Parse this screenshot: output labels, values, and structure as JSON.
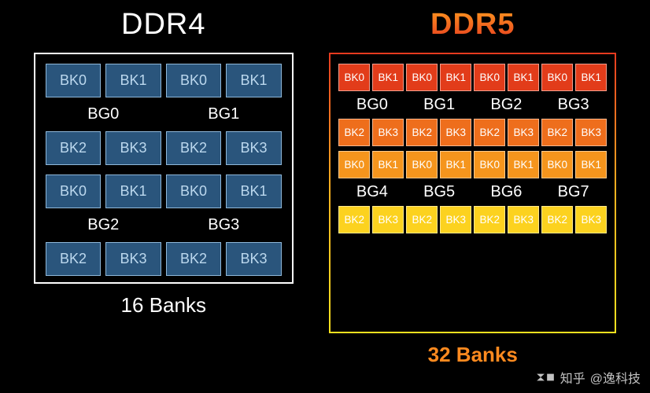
{
  "background_color": "#000000",
  "ddr4": {
    "title": "DDR4",
    "title_color": "#ffffff",
    "panel_border": "#ffffff",
    "bank_fill": "#2a557c",
    "bank_border": "#8fb8da",
    "bank_text_color": "#bcd8ee",
    "bg_label_color": "#ffffff",
    "footer": "16 Banks",
    "footer_color": "#ffffff",
    "bank_groups": [
      {
        "label": "BG0",
        "banks_top": [
          "BK0",
          "BK1"
        ],
        "banks_bottom": [
          "BK2",
          "BK3"
        ]
      },
      {
        "label": "BG1",
        "banks_top": [
          "BK0",
          "BK1"
        ],
        "banks_bottom": [
          "BK2",
          "BK3"
        ]
      },
      {
        "label": "BG2",
        "banks_top": [
          "BK0",
          "BK1"
        ],
        "banks_bottom": [
          "BK2",
          "BK3"
        ]
      },
      {
        "label": "BG3",
        "banks_top": [
          "BK0",
          "BK1"
        ],
        "banks_bottom": [
          "BK2",
          "BK3"
        ]
      }
    ]
  },
  "ddr5": {
    "title": "DDR5",
    "title_gradient": [
      "#ff9a1f",
      "#e63a1f"
    ],
    "panel_border_gradient": [
      "#e63a1f",
      "#ffb41f",
      "#ffe21f"
    ],
    "footer": "32 Banks",
    "footer_color": "#ff8a1f",
    "bg_label_color": "#ffffff",
    "bank_text_color": "#ffffff",
    "row_colors": [
      "#e23c1a",
      "#ee6e1c",
      "#f5951d",
      "#f9b81e",
      "#fcd21f",
      "#ffe21f"
    ],
    "bank_groups_top": [
      {
        "label": "BG0",
        "banks_top": [
          "BK0",
          "BK1"
        ],
        "banks_bottom": [
          "BK2",
          "BK3"
        ]
      },
      {
        "label": "BG1",
        "banks_top": [
          "BK0",
          "BK1"
        ],
        "banks_bottom": [
          "BK2",
          "BK3"
        ]
      },
      {
        "label": "BG2",
        "banks_top": [
          "BK0",
          "BK1"
        ],
        "banks_bottom": [
          "BK2",
          "BK3"
        ]
      },
      {
        "label": "BG3",
        "banks_top": [
          "BK0",
          "BK1"
        ],
        "banks_bottom": [
          "BK2",
          "BK3"
        ]
      }
    ],
    "bank_groups_bottom": [
      {
        "label": "BG4",
        "banks_top": [
          "BK0",
          "BK1"
        ],
        "banks_bottom": [
          "BK2",
          "BK3"
        ]
      },
      {
        "label": "BG5",
        "banks_top": [
          "BK0",
          "BK1"
        ],
        "banks_bottom": [
          "BK2",
          "BK3"
        ]
      },
      {
        "label": "BG6",
        "banks_top": [
          "BK0",
          "BK1"
        ],
        "banks_bottom": [
          "BK2",
          "BK3"
        ]
      },
      {
        "label": "BG7",
        "banks_top": [
          "BK0",
          "BK1"
        ],
        "banks_bottom": [
          "BK2",
          "BK3"
        ]
      }
    ]
  },
  "watermark": {
    "brand": "知乎",
    "author": "@逸科技"
  }
}
